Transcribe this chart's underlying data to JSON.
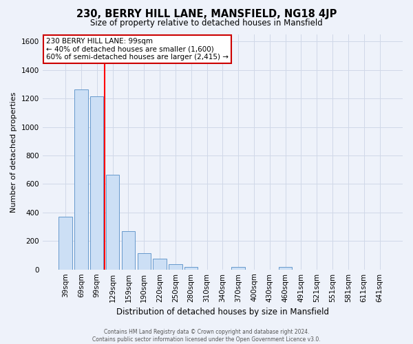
{
  "title": "230, BERRY HILL LANE, MANSFIELD, NG18 4JP",
  "subtitle": "Size of property relative to detached houses in Mansfield",
  "xlabel": "Distribution of detached houses by size in Mansfield",
  "ylabel": "Number of detached properties",
  "bar_labels": [
    "39sqm",
    "69sqm",
    "99sqm",
    "129sqm",
    "159sqm",
    "190sqm",
    "220sqm",
    "250sqm",
    "280sqm",
    "310sqm",
    "340sqm",
    "370sqm",
    "400sqm",
    "430sqm",
    "460sqm",
    "491sqm",
    "521sqm",
    "551sqm",
    "581sqm",
    "611sqm",
    "641sqm"
  ],
  "bar_values": [
    370,
    1265,
    1215,
    665,
    270,
    115,
    75,
    38,
    20,
    0,
    0,
    18,
    0,
    0,
    16,
    0,
    0,
    0,
    0,
    0,
    0
  ],
  "bar_color": "#ccdff5",
  "bar_edge_color": "#6699cc",
  "red_line_index": 2,
  "ylim": [
    0,
    1650
  ],
  "yticks": [
    0,
    200,
    400,
    600,
    800,
    1000,
    1200,
    1400,
    1600
  ],
  "annotation_line1": "230 BERRY HILL LANE: 99sqm",
  "annotation_line2": "← 40% of detached houses are smaller (1,600)",
  "annotation_line3": "60% of semi-detached houses are larger (2,415) →",
  "annotation_box_color": "#ffffff",
  "annotation_box_edge": "#cc0000",
  "footer_line1": "Contains HM Land Registry data © Crown copyright and database right 2024.",
  "footer_line2": "Contains public sector information licensed under the Open Government Licence v3.0.",
  "background_color": "#eef2fa",
  "plot_bg_color": "#eef2fa",
  "grid_color": "#d0d8e8",
  "title_fontsize": 10.5,
  "subtitle_fontsize": 8.5,
  "ylabel_fontsize": 8,
  "xlabel_fontsize": 8.5,
  "tick_fontsize": 7.5,
  "annotation_fontsize": 7.5
}
